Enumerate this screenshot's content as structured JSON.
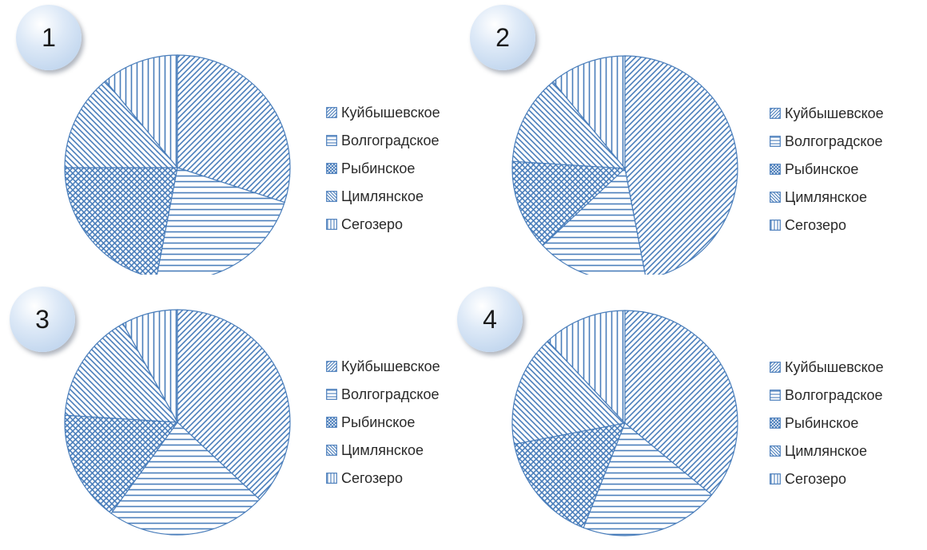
{
  "colors": {
    "stroke": "#4a7ebb",
    "fill": "#ffffff"
  },
  "patterns": [
    "diagonal-up",
    "horizontal",
    "crosshatch",
    "diagonal-down",
    "vertical"
  ],
  "chart_data": [
    {
      "type": "pie",
      "badge": "1",
      "categories": [
        "Куйбышевское",
        "Волгоградское",
        "Рыбинское",
        "Цимлянское",
        "Сегозеро"
      ],
      "values": [
        30,
        23,
        22,
        14,
        11
      ],
      "legend_position": "right"
    },
    {
      "type": "pie",
      "badge": "2",
      "categories": [
        "Куйбышевское",
        "Волгоградское",
        "Рыбинское",
        "Цимлянское",
        "Сегозеро"
      ],
      "values": [
        47,
        16,
        13,
        13,
        11
      ],
      "legend_position": "right"
    },
    {
      "type": "pie",
      "badge": "3",
      "categories": [
        "Куйбышевское",
        "Волгоградское",
        "Рыбинское",
        "Цимлянское",
        "Сегозеро"
      ],
      "values": [
        37,
        23,
        16,
        16,
        8
      ],
      "legend_position": "right"
    },
    {
      "type": "pie",
      "badge": "4",
      "categories": [
        "Куйбышевское",
        "Волгоградское",
        "Рыбинское",
        "Цимлянское",
        "Сегозеро"
      ],
      "values": [
        36,
        20,
        16,
        16,
        12
      ],
      "legend_position": "right"
    }
  ]
}
